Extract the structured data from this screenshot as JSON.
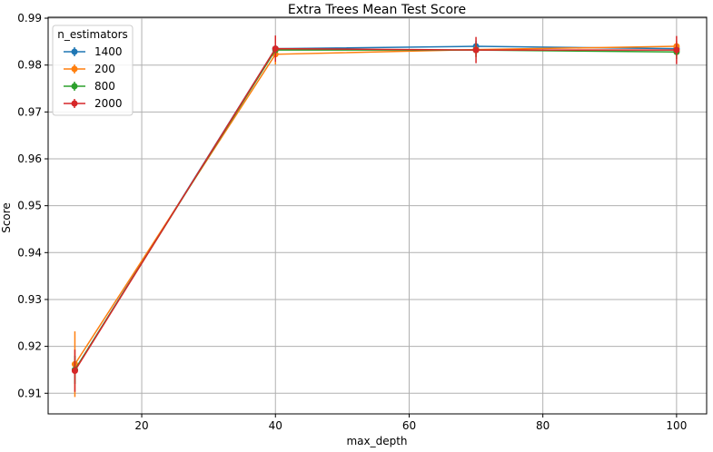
{
  "chart_data": {
    "type": "line",
    "title": "Extra Trees Mean Test Score",
    "xlabel": "max_depth",
    "ylabel": "Score",
    "xlim": [
      6,
      104.5
    ],
    "ylim": [
      0.9056,
      0.9902
    ],
    "xticks": [
      20,
      40,
      60,
      80,
      100
    ],
    "yticks": [
      0.91,
      0.92,
      0.93,
      0.94,
      0.95,
      0.96,
      0.97,
      0.98,
      0.99
    ],
    "x": [
      10,
      40,
      70,
      100
    ],
    "grid": true,
    "legend_title": "n_estimators",
    "legend_position": "top-left",
    "series": [
      {
        "name": "1400",
        "color": "#1f77b4",
        "values": [
          0.915,
          0.9835,
          0.984,
          0.9835
        ],
        "errors": [
          0.003,
          0.0015,
          0.0012,
          0.0012
        ]
      },
      {
        "name": "200",
        "color": "#ff7f0e",
        "values": [
          0.9162,
          0.9823,
          0.9833,
          0.984
        ],
        "errors": [
          0.007,
          0.0022,
          0.0015,
          0.0012
        ]
      },
      {
        "name": "800",
        "color": "#2ca02c",
        "values": [
          0.915,
          0.9832,
          0.9832,
          0.9828
        ],
        "errors": [
          0.003,
          0.0018,
          0.0015,
          0.0015
        ]
      },
      {
        "name": "2000",
        "color": "#d62728",
        "values": [
          0.9148,
          0.9835,
          0.9832,
          0.9832
        ],
        "errors": [
          0.0045,
          0.0028,
          0.0028,
          0.003
        ]
      }
    ]
  }
}
